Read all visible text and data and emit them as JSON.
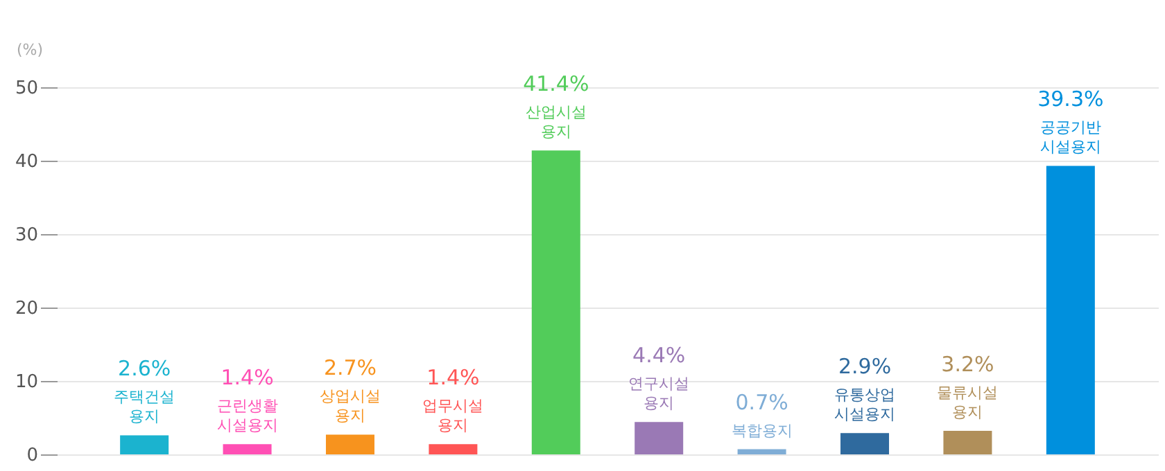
{
  "chart_data": {
    "type": "bar",
    "ylabel": "(%)",
    "categories": [
      "주택건설 용지",
      "근린생활 시설용지",
      "상업시설 용지",
      "업무시설 용지",
      "산업시설 용지",
      "연구시설 용지",
      "복합용지",
      "유통상업 시설용지",
      "물류시설 용지",
      "공공기반 시설용지"
    ],
    "values": [
      2.6,
      1.4,
      2.7,
      1.4,
      41.4,
      4.4,
      0.7,
      2.9,
      3.2,
      39.3
    ],
    "value_labels": [
      "2.6%",
      "1.4%",
      "2.7%",
      "1.4%",
      "41.4%",
      "4.4%",
      "0.7%",
      "2.9%",
      "3.2%",
      "39.3%"
    ],
    "colors": [
      "#1bb3cf",
      "#ff4fb4",
      "#f7931e",
      "#ff5555",
      "#52cc5a",
      "#9a79b5",
      "#7fadd6",
      "#2f6a9e",
      "#b08f5a",
      "#0090dd"
    ],
    "ylim": [
      0,
      50
    ],
    "yticks": [
      0,
      10,
      20,
      30,
      40,
      50
    ],
    "grid": "y",
    "legend": false,
    "tick_labels": "y"
  }
}
